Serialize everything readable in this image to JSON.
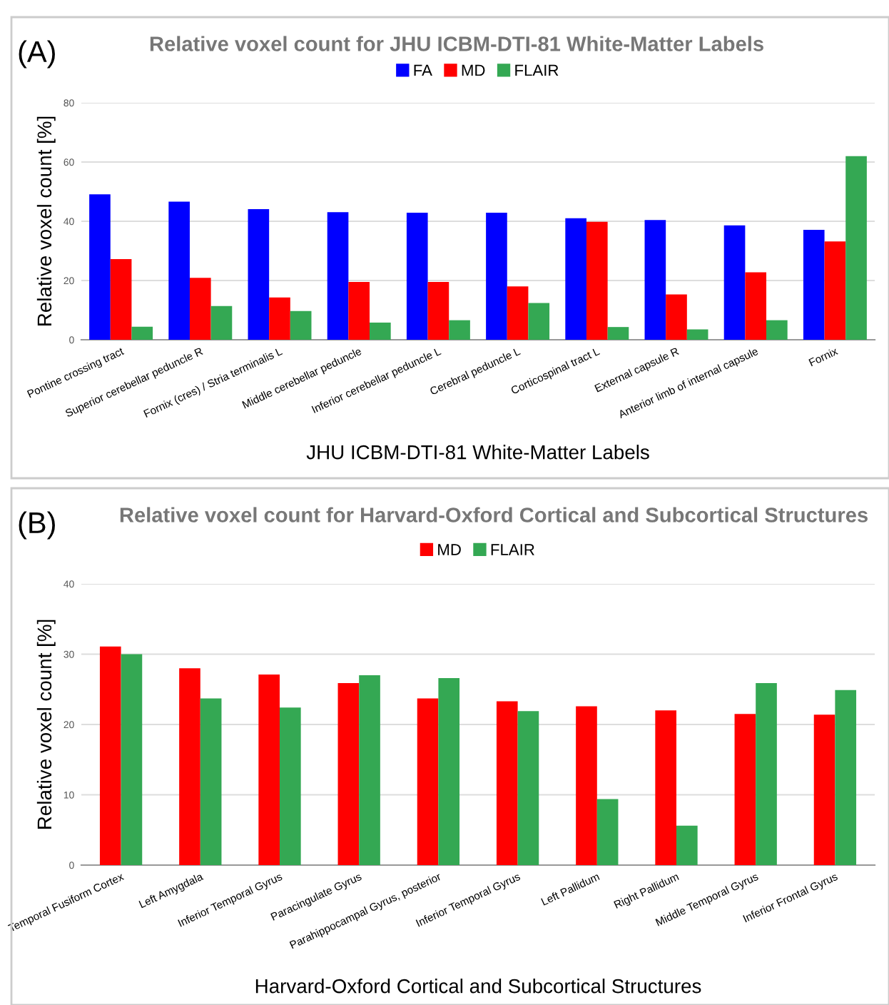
{
  "chart_data": [
    {
      "type": "bar",
      "title": "Relative voxel count for JHU ICBM-DTI-81 White-Matter Labels",
      "annotations": [
        "(A)"
      ],
      "xlabel": "JHU ICBM-DTI-81 White-Matter Labels",
      "ylabel": "Relative voxel count [%]",
      "categories": [
        "Pontine crossing tract",
        "Superior cerebellar peduncle R",
        "Fornix (cres) / Stria terminalis L",
        "Middle cerebellar peduncle",
        "Inferior cerebellar peduncle L",
        "Cerebral peduncle L",
        "Corticospinal tract L",
        "External capsule R",
        "Anterior limb of internal capsule",
        "Fornix"
      ],
      "series": [
        {
          "name": "FA",
          "color": "#0000ff",
          "values": [
            49.1,
            46.6,
            44.1,
            43.1,
            42.9,
            42.9,
            41.0,
            40.4,
            38.6,
            37.1
          ]
        },
        {
          "name": "MD",
          "color": "#ff0000",
          "values": [
            27.2,
            20.9,
            14.3,
            19.5,
            19.5,
            18.0,
            39.8,
            15.3,
            22.8,
            33.2
          ]
        },
        {
          "name": "FLAIR",
          "color": "#34a853",
          "values": [
            4.4,
            11.4,
            9.7,
            5.8,
            6.6,
            12.4,
            4.3,
            3.5,
            6.6,
            62.0
          ]
        }
      ],
      "ylim": [
        0,
        80
      ],
      "yticks": [
        0,
        20,
        40,
        60,
        80
      ],
      "grid": "y",
      "legend": "top"
    },
    {
      "type": "bar",
      "title": "Relative voxel count for Harvard-Oxford Cortical and Subcortical Structures",
      "annotations": [
        "(B)"
      ],
      "xlabel": "Harvard-Oxford Cortical and Subcortical Structures",
      "ylabel": "Relative voxel count [%]",
      "categories": [
        "Temporal Fusiform Cortex",
        "Left Amygdala",
        "Inferior Temporal Gyrus",
        "Paracingulate Gyrus",
        "Parahippocampal Gyrus, posterior",
        "Inferior Temporal Gyrus",
        "Left Pallidum",
        "Right Pallidum",
        "Middle Temporal Gyrus",
        "Inferior Frontal Gyrus"
      ],
      "series": [
        {
          "name": "MD",
          "color": "#ff0000",
          "values": [
            31.1,
            28.0,
            27.1,
            25.9,
            23.7,
            23.3,
            22.6,
            22.0,
            21.5,
            21.4
          ]
        },
        {
          "name": "FLAIR",
          "color": "#34a853",
          "values": [
            30.0,
            23.7,
            22.4,
            27.0,
            26.6,
            21.9,
            9.4,
            5.6,
            25.9,
            24.9
          ]
        }
      ],
      "ylim": [
        0,
        40
      ],
      "yticks": [
        0,
        10,
        20,
        30,
        40
      ],
      "grid": "y",
      "legend": "top"
    }
  ]
}
